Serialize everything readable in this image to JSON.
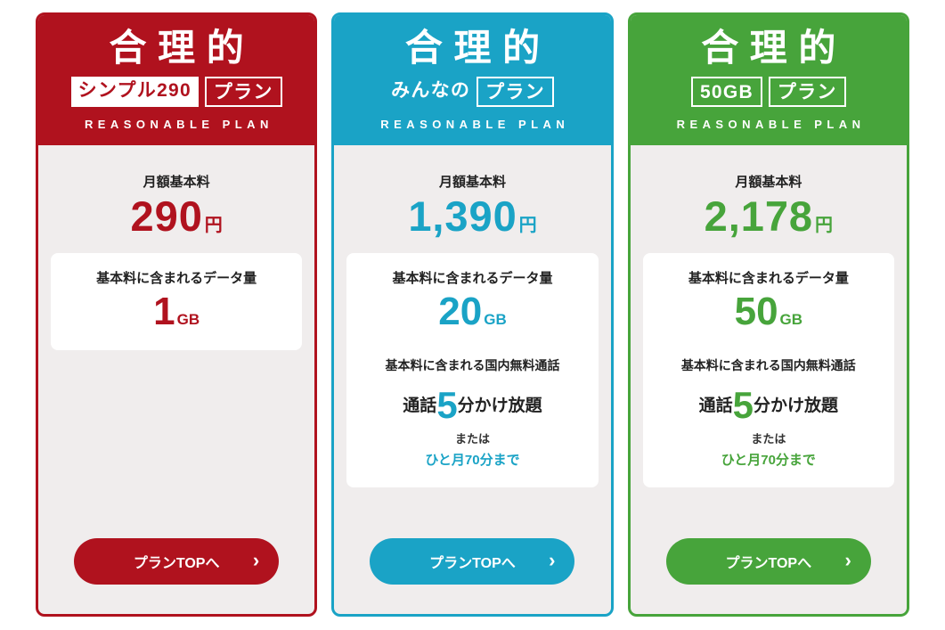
{
  "page": {
    "background": "#ffffff"
  },
  "plans": [
    {
      "name": "シンプル290プラン",
      "accent_color": "#b0121e",
      "header": {
        "title": "合理的",
        "badge_primary": "シンプル290",
        "badge_secondary": "プラン",
        "subtitle": "REASONABLE PLAN"
      },
      "price": {
        "label": "月額基本料",
        "value": "290",
        "unit": "円"
      },
      "data": {
        "label": "基本料に含まれるデータ量",
        "value": "1",
        "unit": "GB"
      },
      "button": {
        "label": "プランTOPへ",
        "chevron": "›"
      }
    },
    {
      "name": "みんなのプラン",
      "accent_color": "#1aa3c6",
      "header": {
        "title": "合理的",
        "badge_primary": "みんなの",
        "badge_secondary": "プラン",
        "subtitle": "REASONABLE PLAN"
      },
      "price": {
        "label": "月額基本料",
        "value": "1,390",
        "unit": "円"
      },
      "data": {
        "label": "基本料に含まれるデータ量",
        "value": "20",
        "unit": "GB"
      },
      "call": {
        "label": "基本料に含まれる国内無料通話",
        "prefix": "通話",
        "minutes": "5",
        "suffix": "分かけ放題",
        "or_text": "または",
        "monthly": "ひと月70分まで"
      },
      "button": {
        "label": "プランTOPへ",
        "chevron": "›"
      }
    },
    {
      "name": "50GBプラン",
      "accent_color": "#47a43b",
      "header": {
        "title": "合理的",
        "badge_primary": "50GB",
        "badge_secondary": "プラン",
        "subtitle": "REASONABLE PLAN"
      },
      "price": {
        "label": "月額基本料",
        "value": "2,178",
        "unit": "円"
      },
      "data": {
        "label": "基本料に含まれるデータ量",
        "value": "50",
        "unit": "GB"
      },
      "call": {
        "label": "基本料に含まれる国内無料通話",
        "prefix": "通話",
        "minutes": "5",
        "suffix": "分かけ放題",
        "or_text": "または",
        "monthly": "ひと月70分まで"
      },
      "button": {
        "label": "プランTOPへ",
        "chevron": "›"
      }
    }
  ]
}
